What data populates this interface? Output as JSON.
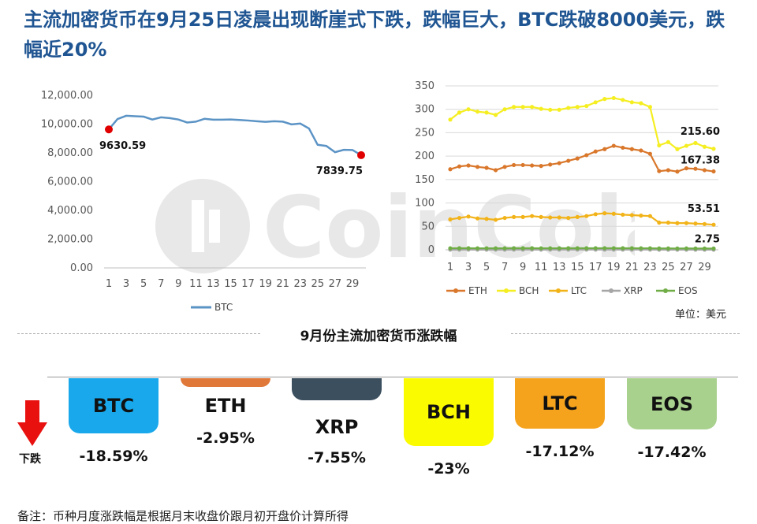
{
  "title": "主流加密货币在9月25日凌晨出现断崖式下跌，跌幅巨大，BTC跌破8000美元，跌幅近20%",
  "watermark": "CoinCola",
  "chart_data": [
    {
      "type": "line",
      "ylim": [
        0,
        12000
      ],
      "yticks": [
        "0.00",
        "2,000.00",
        "4,000.00",
        "6,000.00",
        "8,000.00",
        "10,000.00",
        "12,000.00"
      ],
      "x": [
        1,
        2,
        3,
        4,
        5,
        6,
        7,
        8,
        9,
        10,
        11,
        12,
        13,
        14,
        15,
        16,
        17,
        18,
        19,
        20,
        21,
        22,
        23,
        24,
        25,
        26,
        27,
        28,
        29,
        30
      ],
      "xticks": [
        "1",
        "3",
        "5",
        "7",
        "9",
        "11",
        "13",
        "15",
        "17",
        "19",
        "21",
        "23",
        "25",
        "27",
        "29"
      ],
      "series": [
        {
          "name": "BTC",
          "color": "#5b93c5",
          "values": [
            9630.59,
            10350,
            10580,
            10550,
            10520,
            10320,
            10470,
            10420,
            10320,
            10110,
            10170,
            10370,
            10310,
            10310,
            10320,
            10290,
            10250,
            10200,
            10160,
            10200,
            10170,
            9980,
            10040,
            9700,
            8560,
            8480,
            8050,
            8210,
            8200,
            7839.75
          ]
        }
      ],
      "annotations": [
        {
          "x": 1,
          "label": "9630.59"
        },
        {
          "x": 30,
          "label": "7839.75"
        }
      ]
    },
    {
      "type": "line",
      "ylim": [
        0,
        350
      ],
      "yticks": [
        "0",
        "50",
        "100",
        "150",
        "200",
        "250",
        "300",
        "350"
      ],
      "x": [
        1,
        2,
        3,
        4,
        5,
        6,
        7,
        8,
        9,
        10,
        11,
        12,
        13,
        14,
        15,
        16,
        17,
        18,
        19,
        20,
        21,
        22,
        23,
        24,
        25,
        26,
        27,
        28,
        29,
        30
      ],
      "xticks": [
        "1",
        "3",
        "5",
        "7",
        "9",
        "11",
        "13",
        "15",
        "17",
        "19",
        "21",
        "23",
        "25",
        "27",
        "29"
      ],
      "series": [
        {
          "name": "ETH",
          "color": "#d9772b",
          "values": [
            172,
            178,
            180,
            177,
            175,
            170,
            177,
            181,
            181,
            180,
            179,
            182,
            185,
            190,
            195,
            202,
            210,
            215,
            222,
            218,
            215,
            212,
            205,
            168,
            170,
            167,
            174,
            173,
            170,
            167.38
          ]
        },
        {
          "name": "BCH",
          "color": "#f5ee21",
          "values": [
            278,
            293,
            300,
            295,
            293,
            288,
            300,
            305,
            305,
            305,
            301,
            299,
            299,
            303,
            305,
            307,
            315,
            322,
            324,
            320,
            315,
            313,
            305,
            223,
            230,
            215,
            222,
            228,
            220,
            215.6
          ]
        },
        {
          "name": "LTC",
          "color": "#f2b319",
          "values": [
            65,
            68,
            71,
            67,
            66,
            64,
            68,
            70,
            70,
            72,
            70,
            69,
            69,
            68,
            70,
            72,
            76,
            78,
            77,
            75,
            74,
            73,
            72,
            58,
            58,
            57,
            57,
            56,
            55,
            53.51
          ]
        },
        {
          "name": "XRP",
          "color": "#a6a6a6",
          "values": [
            0.26,
            0.27,
            0.28,
            0.27,
            0.27,
            0.26,
            0.27,
            0.28,
            0.28,
            0.28,
            0.27,
            0.28,
            0.28,
            0.28,
            0.29,
            0.29,
            0.3,
            0.31,
            0.31,
            0.3,
            0.3,
            0.29,
            0.28,
            0.24,
            0.24,
            0.24,
            0.25,
            0.25,
            0.24,
            0.24
          ]
        },
        {
          "name": "EOS",
          "color": "#70ad47",
          "values": [
            3.3,
            3.4,
            3.4,
            3.3,
            3.3,
            3.2,
            3.3,
            3.4,
            3.4,
            3.4,
            3.3,
            3.3,
            3.3,
            3.4,
            3.4,
            3.4,
            3.5,
            3.5,
            3.5,
            3.4,
            3.4,
            3.3,
            3.3,
            2.9,
            2.9,
            2.8,
            2.9,
            2.8,
            2.8,
            2.75
          ]
        }
      ],
      "annotations": [
        {
          "series": "BCH",
          "label": "215.60"
        },
        {
          "series": "ETH",
          "label": "167.38"
        },
        {
          "series": "LTC",
          "label": "53.51"
        },
        {
          "series": "EOS",
          "label": "2.75"
        }
      ]
    },
    {
      "type": "bar",
      "title": "9月份主流加密货币涨跌幅",
      "categories": [
        "BTC",
        "ETH",
        "XRP",
        "BCH",
        "LTC",
        "EOS"
      ],
      "values": [
        -18.59,
        -2.95,
        -7.55,
        -23,
        -17.12,
        -17.42
      ],
      "labels": [
        "-18.59%",
        "-2.95%",
        "-7.55%",
        "-23%",
        "-17.12%",
        "-17.42%"
      ],
      "colors": [
        "#18a8eb",
        "#e0783a",
        "#3c4f5f",
        "#fbfb00",
        "#f5a31c",
        "#a9d18e"
      ]
    }
  ],
  "unit_label": "单位：美元",
  "down_label": "下跌",
  "footnote": "备注：币种月度涨跌幅是根据月末收盘价跟月初开盘价计算所得"
}
